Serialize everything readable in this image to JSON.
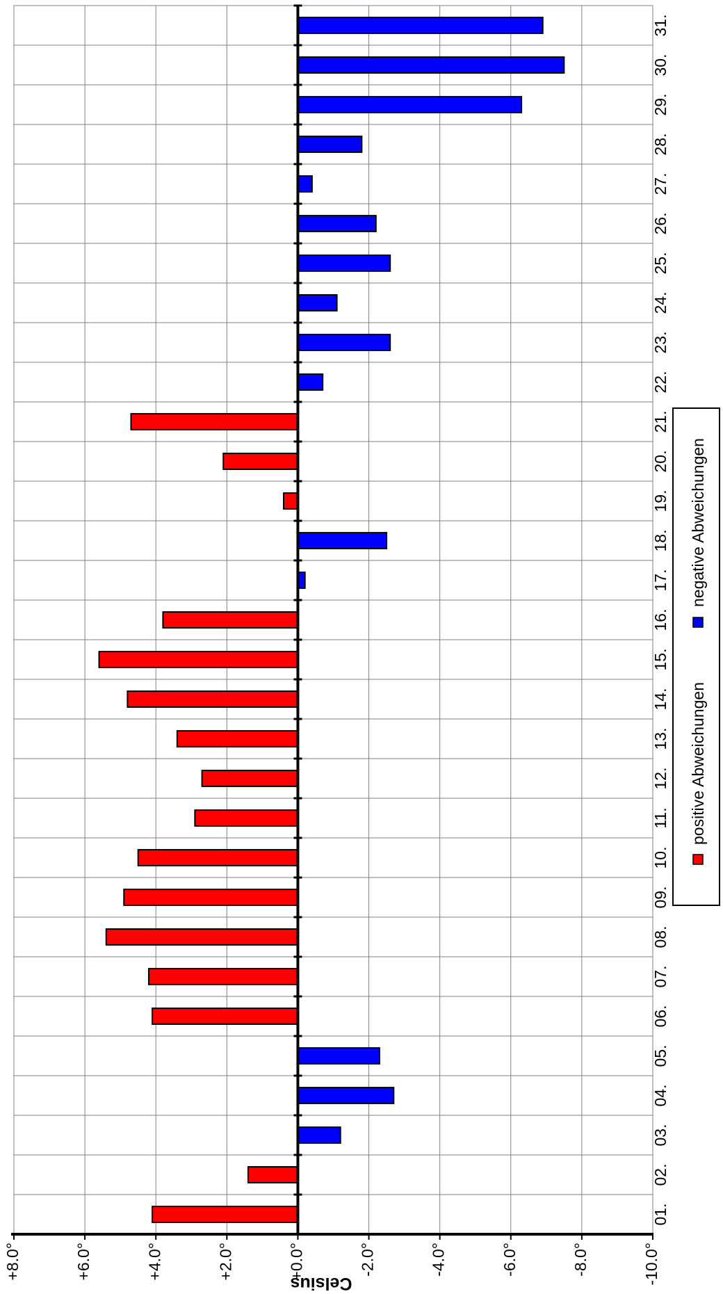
{
  "chart_data": {
    "type": "bar",
    "orientation": "rotated-90",
    "categories": [
      "01.",
      "02.",
      "03.",
      "04.",
      "05.",
      "06.",
      "07.",
      "08.",
      "09.",
      "10.",
      "11.",
      "12.",
      "13.",
      "14.",
      "15.",
      "16.",
      "17.",
      "18.",
      "19.",
      "20.",
      "21.",
      "22.",
      "23.",
      "24.",
      "25.",
      "26.",
      "27.",
      "28.",
      "29.",
      "30.",
      "31."
    ],
    "values": [
      4.1,
      1.4,
      -1.2,
      -2.7,
      -2.3,
      4.1,
      4.2,
      5.4,
      4.9,
      4.5,
      2.9,
      2.7,
      3.4,
      4.8,
      5.6,
      3.8,
      -0.2,
      -2.5,
      0.4,
      2.1,
      4.7,
      -0.7,
      -2.6,
      -1.1,
      -2.6,
      -2.2,
      -0.4,
      -1.8,
      -6.3,
      -7.5,
      -6.9
    ],
    "series": [
      {
        "name": "positive Abweichungen",
        "color": "#ff0000",
        "sign": "positive"
      },
      {
        "name": "negative Abweichungen",
        "color": "#0000ff",
        "sign": "negative"
      }
    ],
    "value_axis": {
      "title": "Celsius",
      "range": [
        -10,
        8
      ],
      "ticks": [
        8,
        6,
        4,
        2,
        0,
        -2,
        -4,
        -6,
        -8,
        -10
      ],
      "tick_labels": [
        "+8.0°",
        "+6.0°",
        "+4.0°",
        "+2.0°",
        "+0.0°",
        "-2.0°",
        "-4.0°",
        "-6.0°",
        "-8.0°",
        "-10.0°"
      ]
    },
    "grid": true,
    "legend_position": "right"
  }
}
